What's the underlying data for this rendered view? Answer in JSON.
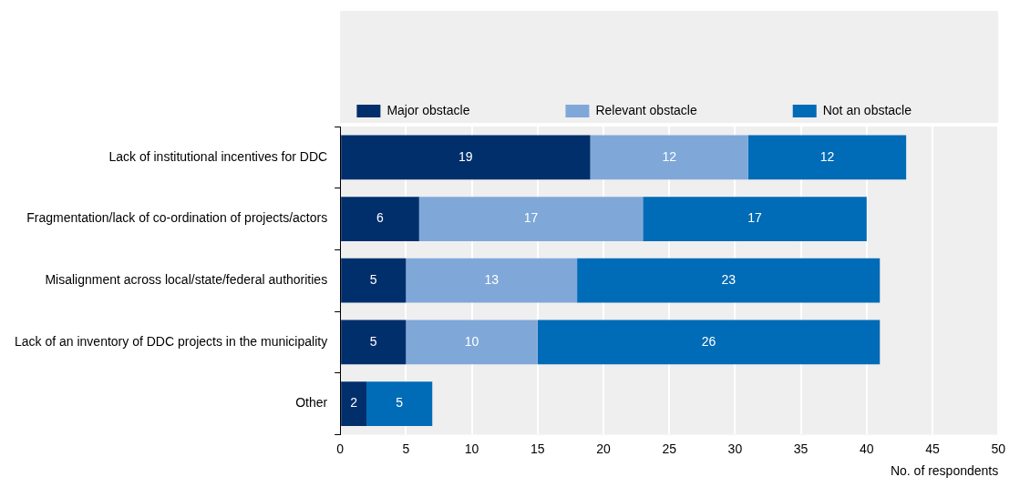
{
  "chart_data": {
    "type": "bar",
    "orientation": "horizontal",
    "stacked": true,
    "xlabel": "No. of respondents",
    "categories": [
      "Lack of institutional incentives for DDC",
      "Fragmentation/lack of co-ordination of projects/actors",
      "Misalignment across local/state/federal authorities",
      "Lack of an inventory of DDC projects in the municipality",
      "Other"
    ],
    "series": [
      {
        "name": "Major obstacle",
        "color": "#002f6c",
        "values": [
          19,
          6,
          5,
          5,
          2
        ]
      },
      {
        "name": "Relevant obstacle",
        "color": "#7fa8d9",
        "values": [
          12,
          17,
          13,
          10,
          null
        ]
      },
      {
        "name": "Not an obstacle",
        "color": "#006bb6",
        "values": [
          12,
          17,
          23,
          26,
          5
        ]
      }
    ],
    "xlim": [
      0,
      50
    ],
    "xticks": [
      0,
      5,
      10,
      15,
      20,
      25,
      30,
      35,
      40,
      45,
      50
    ],
    "grid": "x",
    "legend": "top",
    "data_labels": true
  }
}
